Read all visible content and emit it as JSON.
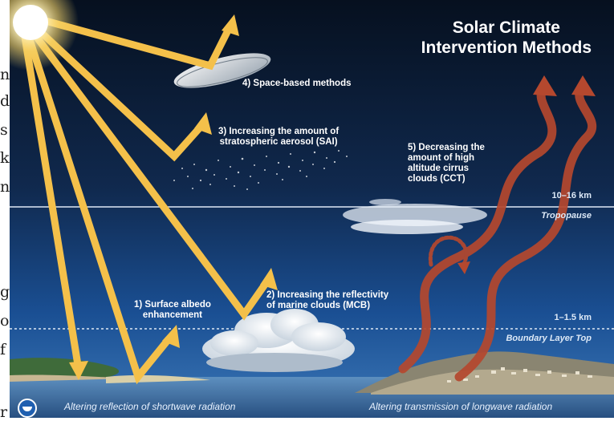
{
  "title": "Solar Climate\nIntervention Methods",
  "methods": [
    {
      "id": 1,
      "label": "1) Surface albedo\nenhancement"
    },
    {
      "id": 2,
      "label": "2) Increasing the reflectivity\nof marine clouds (MCB)"
    },
    {
      "id": 3,
      "label": "3) Increasing the amount of\nstratospheric aerosol (SAI)"
    },
    {
      "id": 4,
      "label": "4) Space-based methods"
    },
    {
      "id": 5,
      "label": "5) Decreasing the\namount of high\naltitude cirrus\nclouds (CCT)"
    }
  ],
  "layers": {
    "tropopause_height": "10–16 km",
    "tropopause_label": "Tropopause",
    "boundary_height": "1–1.5 km",
    "boundary_label": "Boundary Layer Top"
  },
  "footer": {
    "shortwave": "Altering reflection of shortwave radiation",
    "longwave": "Altering transmission of longwave radiation"
  },
  "page_edge": {
    "letters": [
      "n",
      "d",
      "s",
      "k",
      "n",
      "g",
      "o",
      "f",
      "r"
    ]
  },
  "colors": {
    "sky_top": "#06101f",
    "sky_bottom": "#1a4f93",
    "sun": "#fff6c8",
    "ray": "#f4c04a",
    "longwave": "#b5482e"
  },
  "icons": {
    "logo": "noaa-logo-icon"
  }
}
